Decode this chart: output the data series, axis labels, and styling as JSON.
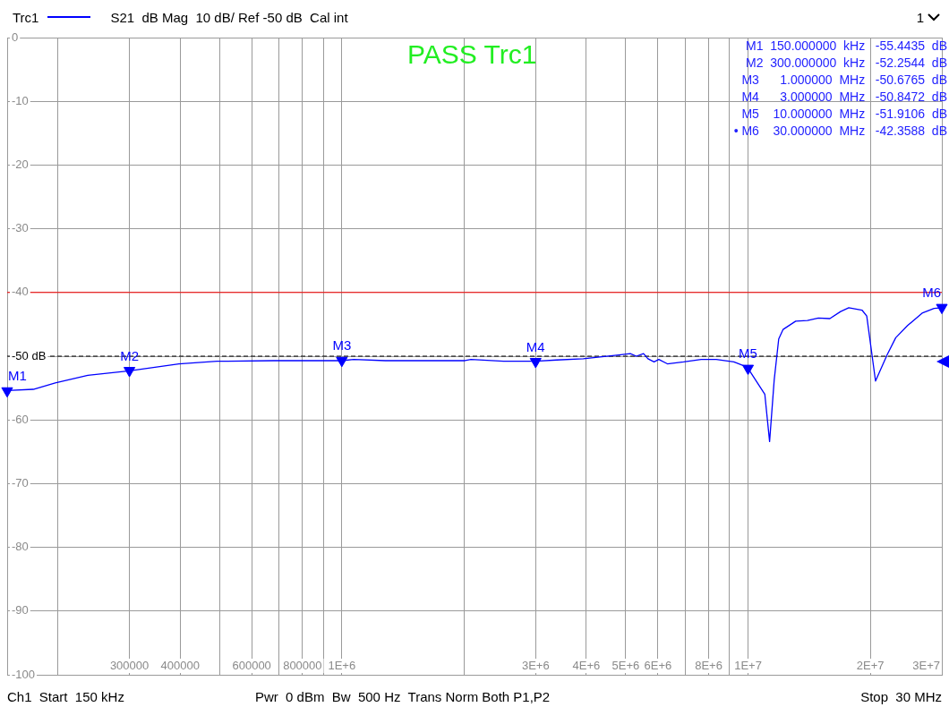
{
  "chart_data": {
    "type": "line",
    "title": "PASS Trc1",
    "subtitle": "S21  dB Mag  10 dB/ Ref -50 dB  Cal int",
    "log": "x",
    "grid": true,
    "legend": "top left",
    "xlim": [
      150000,
      30000000
    ],
    "xticks": [
      {
        "value": 200000,
        "label": null
      },
      {
        "value": 300000,
        "label": "300000"
      },
      {
        "value": 400000,
        "label": "400000"
      },
      {
        "value": 500000,
        "label": null
      },
      {
        "value": 600000,
        "label": "600000"
      },
      {
        "value": 700000,
        "label": null
      },
      {
        "value": 800000,
        "label": "800000"
      },
      {
        "value": 900000,
        "label": null
      },
      {
        "value": 1000000,
        "label": "1E+6"
      },
      {
        "value": 2000000,
        "label": null
      },
      {
        "value": 3000000,
        "label": "3E+6"
      },
      {
        "value": 4000000,
        "label": "4E+6"
      },
      {
        "value": 5000000,
        "label": "5E+6"
      },
      {
        "value": 6000000,
        "label": "6E+6"
      },
      {
        "value": 7000000,
        "label": null
      },
      {
        "value": 8000000,
        "label": "8E+6"
      },
      {
        "value": 9000000,
        "label": null
      },
      {
        "value": 10000000,
        "label": "1E+7"
      },
      {
        "value": 20000000,
        "label": "2E+7"
      },
      {
        "value": 30000000,
        "label": "3E+7"
      }
    ],
    "ylim": [
      -100,
      0
    ],
    "yticks": [
      0,
      -10,
      -20,
      -30,
      -40,
      {
        "value": -50,
        "label": "-50 dB"
      },
      -60,
      -70,
      -80,
      -90,
      -100
    ],
    "ref_lines": [
      {
        "axis": "y",
        "value": -40,
        "color": "#ff0000"
      },
      {
        "axis": "y",
        "value": -50,
        "color": "#000000",
        "line_style": "dashed"
      }
    ],
    "series": [
      {
        "name": "Trc1",
        "type": "line",
        "color": "#0000ff",
        "line_style": "solid",
        "x": [
          150000,
          174000,
          197000,
          237000,
          300000,
          397000,
          493000,
          679000,
          1000000,
          1070000,
          1280000,
          2010000,
          2080000,
          2500000,
          3000000,
          3380000,
          3930000,
          4810000,
          5130000,
          5310000,
          5530000,
          5670000,
          5870000,
          6030000,
          6330000,
          6940000,
          7670000,
          8350000,
          9230000,
          9750000,
          10000000,
          11000000,
          11300000,
          11600000,
          11900000,
          12200000,
          13100000,
          14000000,
          14900000,
          15900000,
          16900000,
          17700000,
          19100000,
          19600000,
          20600000,
          22000000,
          23100000,
          24700000,
          26900000,
          28700000,
          30000000
        ],
        "values": [
          -55.4,
          -55.2,
          -54.2,
          -53.0,
          -52.3,
          -51.2,
          -50.8,
          -50.7,
          -50.7,
          -50.5,
          -50.7,
          -50.7,
          -50.5,
          -50.8,
          -50.8,
          -50.6,
          -50.4,
          -49.8,
          -49.6,
          -50.0,
          -49.6,
          -50.4,
          -50.9,
          -50.5,
          -51.2,
          -50.9,
          -50.5,
          -50.5,
          -50.9,
          -51.5,
          -51.9,
          -56.0,
          -63.4,
          -53.7,
          -47.3,
          -45.8,
          -44.5,
          -44.4,
          -44.0,
          -44.1,
          -43.0,
          -42.4,
          -42.8,
          -43.7,
          -53.9,
          -49.8,
          -47.1,
          -45.2,
          -43.2,
          -42.5,
          -42.4
        ]
      },
      {
        "type": "scatter",
        "color": "#0000ff",
        "marker": "triangle",
        "x": [
          150000,
          300000,
          1000000,
          3000000,
          10000000,
          30000000
        ],
        "values": [
          -55.4435,
          -52.2544,
          -50.6765,
          -50.8472,
          -51.9106,
          -42.3588
        ],
        "value_labels": [
          "M1",
          "M2",
          "M3",
          "M4",
          "M5",
          "M6"
        ]
      }
    ],
    "annotations": [
      "M1  150.000000  kHz   -55.4435  dB",
      "M2  300.000000  kHz   -52.2544  dB",
      "M3      1.000000  MHz   -50.6765  dB",
      "M4      3.000000  MHz   -50.8472  dB",
      "M5    10.000000  MHz   -51.9106  dB",
      "• M6    30.000000  MHz   -42.3588  dB",
      "1",
      "Ch1  Start  150 kHz",
      "Pwr  0 dBm  Bw  500 Hz  Trans Norm Both P1,P2",
      "Stop  30 MHz"
    ]
  }
}
